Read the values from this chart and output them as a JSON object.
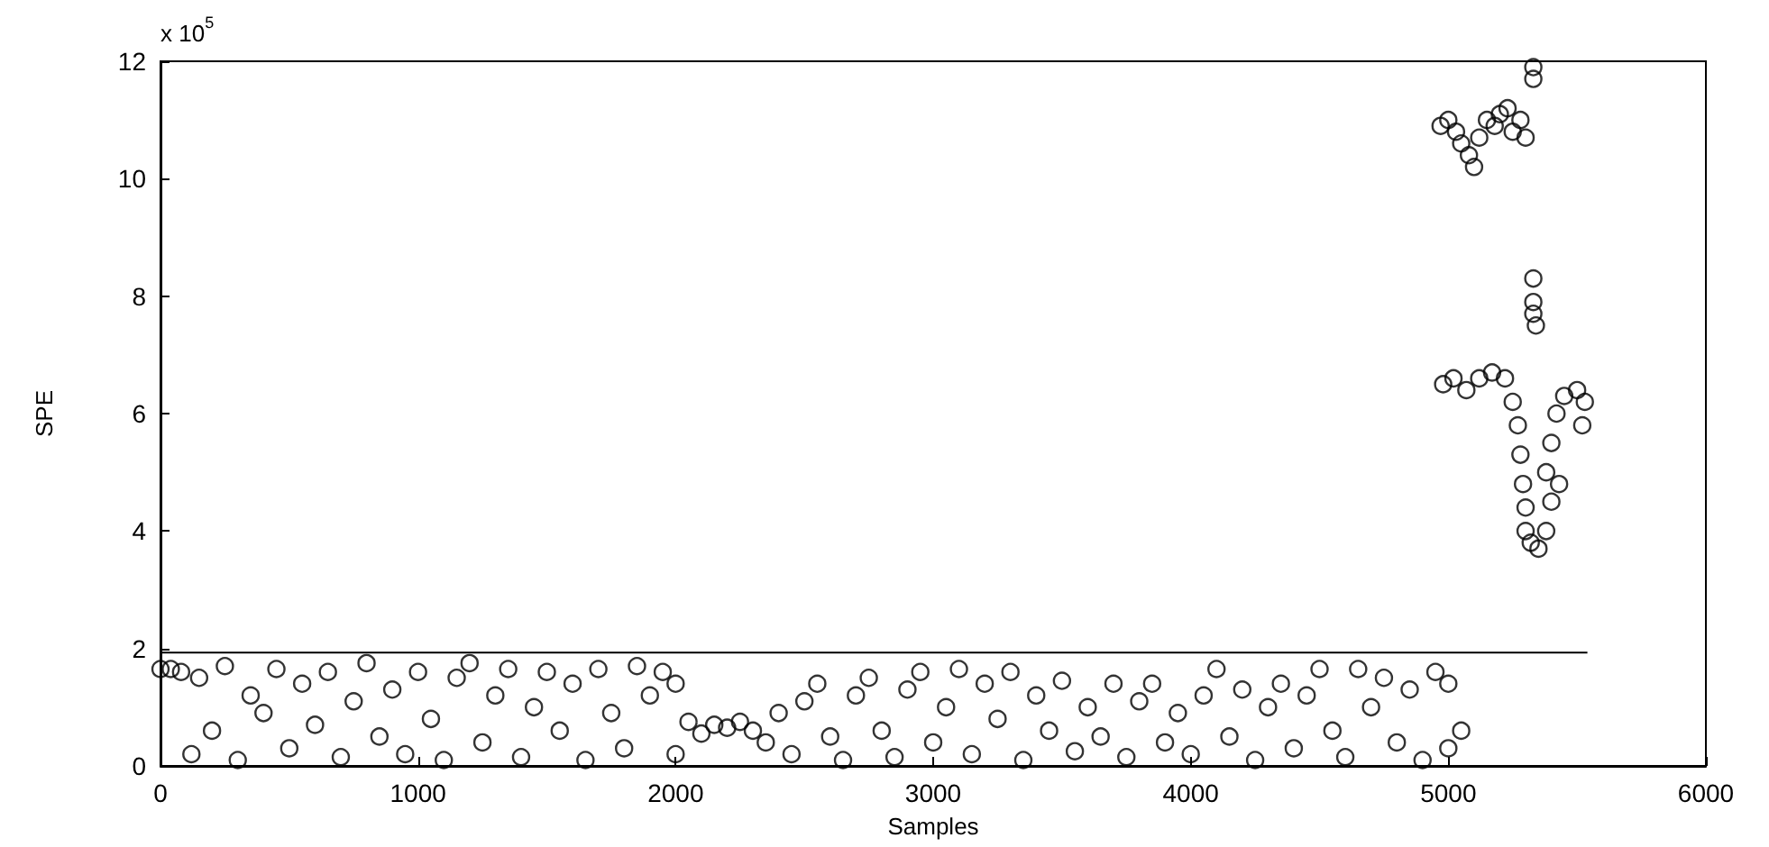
{
  "chart_data": {
    "type": "scatter",
    "xlabel": "Samples",
    "ylabel": "SPE",
    "annotations": [
      "x 10$^{5}$"
    ],
    "xlim": [
      0,
      6000
    ],
    "xticks": [
      0,
      1000,
      2000,
      3000,
      4000,
      5000,
      6000
    ],
    "ylim": [
      0,
      12
    ],
    "yticks": [
      0,
      2,
      4,
      6,
      8,
      10,
      12
    ],
    "grid": false,
    "marker": "circle",
    "series": [
      {
        "color": "#000000",
        "x": [
          0,
          40,
          80,
          120,
          150,
          200,
          250,
          300,
          350,
          400,
          450,
          500,
          550,
          600,
          650,
          700,
          750,
          800,
          850,
          900,
          950,
          1000,
          1050,
          1100,
          1150,
          1200,
          1250,
          1300,
          1350,
          1400,
          1450,
          1500,
          1550,
          1600,
          1650,
          1700,
          1750,
          1800,
          1850,
          1900,
          1950,
          2000,
          2000,
          2050,
          2100,
          2150,
          2200,
          2250,
          2300,
          2350,
          2400,
          2450,
          2500,
          2550,
          2600,
          2650,
          2700,
          2750,
          2800,
          2850,
          2900,
          2950,
          3000,
          3050,
          3100,
          3150,
          3200,
          3250,
          3300,
          3350,
          3400,
          3450,
          3500,
          3550,
          3600,
          3650,
          3700,
          3750,
          3800,
          3850,
          3900,
          3950,
          4000,
          4050,
          4100,
          4150,
          4200,
          4250,
          4300,
          4350,
          4400,
          4450,
          4500,
          4550,
          4600,
          4650,
          4700,
          4750,
          4800,
          4850,
          4900,
          4950,
          5000,
          5000,
          5050,
          4970,
          5000,
          5030,
          5050,
          5080,
          5100,
          5120,
          5150,
          5180,
          5200,
          5230,
          5250,
          5280,
          5300,
          5330,
          5330,
          5330,
          5330,
          5330,
          5340,
          4980,
          5020,
          5070,
          5120,
          5170,
          5220,
          5250,
          5270,
          5280,
          5290,
          5300,
          5300,
          5320,
          5350,
          5380,
          5400,
          5380,
          5400,
          5420,
          5450,
          5500,
          5530,
          5520,
          5430
        ],
        "values": [
          1.65,
          1.65,
          1.6,
          0.2,
          1.5,
          0.6,
          1.7,
          0.1,
          1.2,
          0.9,
          1.65,
          0.3,
          1.4,
          0.7,
          1.6,
          0.15,
          1.1,
          1.75,
          0.5,
          1.3,
          0.2,
          1.6,
          0.8,
          0.1,
          1.5,
          1.75,
          0.4,
          1.2,
          1.65,
          0.15,
          1.0,
          1.6,
          0.6,
          1.4,
          0.1,
          1.65,
          0.9,
          0.3,
          1.7,
          1.2,
          1.6,
          0.2,
          1.4,
          0.75,
          0.55,
          0.7,
          0.65,
          0.75,
          0.6,
          0.4,
          0.9,
          0.2,
          1.1,
          1.4,
          0.5,
          0.1,
          1.2,
          1.5,
          0.6,
          0.15,
          1.3,
          1.6,
          0.4,
          1.0,
          1.65,
          0.2,
          1.4,
          0.8,
          1.6,
          0.1,
          1.2,
          0.6,
          1.45,
          0.25,
          1.0,
          0.5,
          1.4,
          0.15,
          1.1,
          1.4,
          0.4,
          0.9,
          0.2,
          1.2,
          1.65,
          0.5,
          1.3,
          0.1,
          1.0,
          1.4,
          0.3,
          1.2,
          1.65,
          0.6,
          0.15,
          1.65,
          1.0,
          1.5,
          0.4,
          1.3,
          0.1,
          1.6,
          1.4,
          0.3,
          0.6,
          10.9,
          11.0,
          10.8,
          10.6,
          10.4,
          10.2,
          10.7,
          11.0,
          10.9,
          11.1,
          11.2,
          10.8,
          11.0,
          10.7,
          11.9,
          11.7,
          8.3,
          7.9,
          7.7,
          7.5,
          6.5,
          6.6,
          6.4,
          6.6,
          6.7,
          6.6,
          6.2,
          5.8,
          5.3,
          4.8,
          4.4,
          4.0,
          3.8,
          3.7,
          4.0,
          4.5,
          5.0,
          5.5,
          6.0,
          6.3,
          6.4,
          6.2,
          5.8,
          4.8
        ]
      },
      {
        "type": "line",
        "color": "#000000",
        "marker": "none",
        "line_style": "solid",
        "x": [
          0,
          5540
        ],
        "values": [
          1.93,
          1.93
        ]
      }
    ]
  }
}
